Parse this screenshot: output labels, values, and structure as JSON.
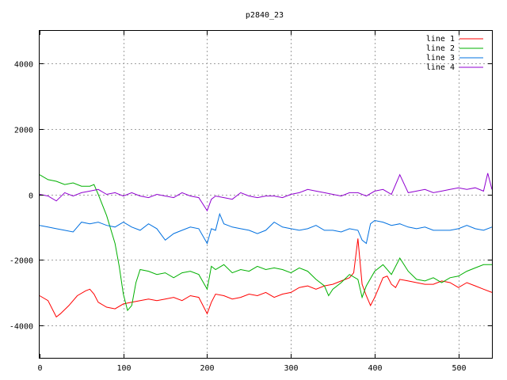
{
  "chart_data": {
    "type": "line",
    "title": "p2840_23",
    "xlim": [
      0,
      540
    ],
    "ylim": [
      -5000,
      5000
    ],
    "x_ticks": [
      0,
      100,
      200,
      300,
      400,
      500
    ],
    "y_ticks": [
      -4000,
      -2000,
      0,
      2000,
      4000
    ],
    "grid": true,
    "legend": "top-right",
    "series": [
      {
        "name": "line 1",
        "color": "#ff0000",
        "points": [
          [
            0,
            -3100
          ],
          [
            10,
            -3250
          ],
          [
            20,
            -3750
          ],
          [
            25,
            -3650
          ],
          [
            35,
            -3400
          ],
          [
            45,
            -3100
          ],
          [
            55,
            -2950
          ],
          [
            60,
            -2900
          ],
          [
            65,
            -3050
          ],
          [
            70,
            -3300
          ],
          [
            80,
            -3450
          ],
          [
            90,
            -3500
          ],
          [
            100,
            -3350
          ],
          [
            110,
            -3300
          ],
          [
            120,
            -3250
          ],
          [
            130,
            -3200
          ],
          [
            140,
            -3250
          ],
          [
            150,
            -3200
          ],
          [
            160,
            -3150
          ],
          [
            170,
            -3250
          ],
          [
            180,
            -3100
          ],
          [
            190,
            -3150
          ],
          [
            200,
            -3650
          ],
          [
            205,
            -3300
          ],
          [
            210,
            -3050
          ],
          [
            220,
            -3100
          ],
          [
            230,
            -3200
          ],
          [
            240,
            -3150
          ],
          [
            250,
            -3050
          ],
          [
            260,
            -3100
          ],
          [
            270,
            -3000
          ],
          [
            280,
            -3150
          ],
          [
            290,
            -3050
          ],
          [
            300,
            -3000
          ],
          [
            310,
            -2850
          ],
          [
            320,
            -2800
          ],
          [
            330,
            -2900
          ],
          [
            340,
            -2800
          ],
          [
            350,
            -2750
          ],
          [
            360,
            -2650
          ],
          [
            370,
            -2550
          ],
          [
            375,
            -2400
          ],
          [
            380,
            -1350
          ],
          [
            385,
            -2750
          ],
          [
            390,
            -3100
          ],
          [
            395,
            -3400
          ],
          [
            400,
            -3150
          ],
          [
            405,
            -2850
          ],
          [
            410,
            -2550
          ],
          [
            415,
            -2500
          ],
          [
            420,
            -2750
          ],
          [
            425,
            -2850
          ],
          [
            430,
            -2600
          ],
          [
            440,
            -2650
          ],
          [
            450,
            -2700
          ],
          [
            460,
            -2750
          ],
          [
            470,
            -2750
          ],
          [
            480,
            -2650
          ],
          [
            490,
            -2700
          ],
          [
            500,
            -2850
          ],
          [
            510,
            -2700
          ],
          [
            520,
            -2800
          ],
          [
            530,
            -2900
          ],
          [
            540,
            -3000
          ]
        ]
      },
      {
        "name": "line 2",
        "color": "#00b000",
        "points": [
          [
            0,
            600
          ],
          [
            10,
            450
          ],
          [
            20,
            400
          ],
          [
            30,
            300
          ],
          [
            40,
            350
          ],
          [
            50,
            250
          ],
          [
            60,
            250
          ],
          [
            65,
            300
          ],
          [
            70,
            0
          ],
          [
            80,
            -650
          ],
          [
            90,
            -1500
          ],
          [
            95,
            -2200
          ],
          [
            100,
            -3050
          ],
          [
            105,
            -3550
          ],
          [
            110,
            -3400
          ],
          [
            115,
            -2700
          ],
          [
            120,
            -2300
          ],
          [
            130,
            -2350
          ],
          [
            140,
            -2450
          ],
          [
            150,
            -2400
          ],
          [
            160,
            -2550
          ],
          [
            170,
            -2400
          ],
          [
            180,
            -2350
          ],
          [
            190,
            -2450
          ],
          [
            200,
            -2900
          ],
          [
            205,
            -2200
          ],
          [
            210,
            -2300
          ],
          [
            220,
            -2150
          ],
          [
            230,
            -2400
          ],
          [
            240,
            -2300
          ],
          [
            250,
            -2350
          ],
          [
            260,
            -2200
          ],
          [
            270,
            -2300
          ],
          [
            280,
            -2250
          ],
          [
            290,
            -2300
          ],
          [
            300,
            -2400
          ],
          [
            310,
            -2250
          ],
          [
            320,
            -2350
          ],
          [
            330,
            -2600
          ],
          [
            340,
            -2800
          ],
          [
            345,
            -3100
          ],
          [
            350,
            -2900
          ],
          [
            360,
            -2700
          ],
          [
            370,
            -2450
          ],
          [
            380,
            -2600
          ],
          [
            385,
            -3150
          ],
          [
            390,
            -2800
          ],
          [
            400,
            -2350
          ],
          [
            410,
            -2150
          ],
          [
            420,
            -2450
          ],
          [
            430,
            -1950
          ],
          [
            440,
            -2350
          ],
          [
            450,
            -2600
          ],
          [
            460,
            -2650
          ],
          [
            470,
            -2550
          ],
          [
            480,
            -2700
          ],
          [
            490,
            -2550
          ],
          [
            500,
            -2500
          ],
          [
            510,
            -2350
          ],
          [
            520,
            -2250
          ],
          [
            530,
            -2150
          ],
          [
            540,
            -2150
          ]
        ]
      },
      {
        "name": "line 3",
        "color": "#0070e0",
        "points": [
          [
            0,
            -950
          ],
          [
            10,
            -1000
          ],
          [
            20,
            -1050
          ],
          [
            30,
            -1100
          ],
          [
            40,
            -1150
          ],
          [
            50,
            -850
          ],
          [
            60,
            -900
          ],
          [
            70,
            -850
          ],
          [
            80,
            -950
          ],
          [
            90,
            -1000
          ],
          [
            100,
            -850
          ],
          [
            110,
            -1000
          ],
          [
            120,
            -1100
          ],
          [
            130,
            -900
          ],
          [
            140,
            -1050
          ],
          [
            150,
            -1400
          ],
          [
            160,
            -1200
          ],
          [
            170,
            -1100
          ],
          [
            180,
            -1000
          ],
          [
            190,
            -1050
          ],
          [
            200,
            -1500
          ],
          [
            205,
            -1050
          ],
          [
            210,
            -1100
          ],
          [
            215,
            -600
          ],
          [
            220,
            -900
          ],
          [
            230,
            -1000
          ],
          [
            240,
            -1050
          ],
          [
            250,
            -1100
          ],
          [
            260,
            -1200
          ],
          [
            270,
            -1100
          ],
          [
            280,
            -850
          ],
          [
            290,
            -1000
          ],
          [
            300,
            -1050
          ],
          [
            310,
            -1100
          ],
          [
            320,
            -1050
          ],
          [
            330,
            -950
          ],
          [
            340,
            -1100
          ],
          [
            350,
            -1100
          ],
          [
            360,
            -1150
          ],
          [
            370,
            -1050
          ],
          [
            380,
            -1100
          ],
          [
            385,
            -1400
          ],
          [
            390,
            -1500
          ],
          [
            395,
            -900
          ],
          [
            400,
            -800
          ],
          [
            410,
            -850
          ],
          [
            420,
            -950
          ],
          [
            430,
            -900
          ],
          [
            440,
            -1000
          ],
          [
            450,
            -1050
          ],
          [
            460,
            -1000
          ],
          [
            470,
            -1100
          ],
          [
            480,
            -1100
          ],
          [
            490,
            -1100
          ],
          [
            500,
            -1050
          ],
          [
            510,
            -950
          ],
          [
            520,
            -1050
          ],
          [
            530,
            -1100
          ],
          [
            540,
            -1000
          ]
        ]
      },
      {
        "name": "line 4",
        "color": "#9000d0",
        "points": [
          [
            0,
            0
          ],
          [
            10,
            -50
          ],
          [
            20,
            -200
          ],
          [
            30,
            50
          ],
          [
            40,
            -50
          ],
          [
            50,
            50
          ],
          [
            60,
            100
          ],
          [
            70,
            150
          ],
          [
            80,
            0
          ],
          [
            90,
            50
          ],
          [
            100,
            -50
          ],
          [
            110,
            50
          ],
          [
            120,
            -50
          ],
          [
            130,
            -100
          ],
          [
            140,
            0
          ],
          [
            150,
            -50
          ],
          [
            160,
            -100
          ],
          [
            170,
            50
          ],
          [
            180,
            -50
          ],
          [
            190,
            -100
          ],
          [
            200,
            -500
          ],
          [
            205,
            -150
          ],
          [
            210,
            -50
          ],
          [
            220,
            -100
          ],
          [
            230,
            -150
          ],
          [
            240,
            50
          ],
          [
            250,
            -50
          ],
          [
            260,
            -100
          ],
          [
            270,
            -50
          ],
          [
            280,
            -50
          ],
          [
            290,
            -100
          ],
          [
            300,
            0
          ],
          [
            310,
            50
          ],
          [
            320,
            150
          ],
          [
            330,
            100
          ],
          [
            340,
            50
          ],
          [
            350,
            0
          ],
          [
            360,
            -50
          ],
          [
            370,
            50
          ],
          [
            380,
            50
          ],
          [
            390,
            -50
          ],
          [
            400,
            100
          ],
          [
            410,
            150
          ],
          [
            420,
            0
          ],
          [
            430,
            600
          ],
          [
            440,
            50
          ],
          [
            450,
            100
          ],
          [
            460,
            150
          ],
          [
            470,
            50
          ],
          [
            480,
            100
          ],
          [
            490,
            150
          ],
          [
            500,
            200
          ],
          [
            510,
            150
          ],
          [
            520,
            200
          ],
          [
            530,
            100
          ],
          [
            535,
            650
          ],
          [
            540,
            150
          ]
        ]
      }
    ]
  }
}
